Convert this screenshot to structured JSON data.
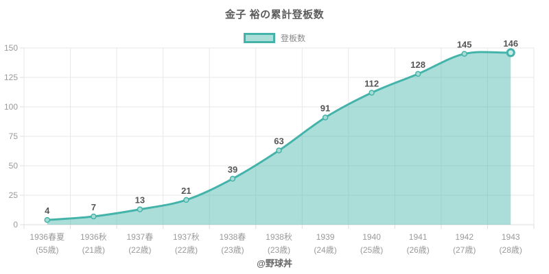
{
  "title": "金子 裕の累計登板数",
  "legend": {
    "label": "登板数"
  },
  "watermark": "@野球丼",
  "colors": {
    "line": "#44b3aa",
    "fill": "rgba(68,179,170,0.45)",
    "marker_fill": "#a7dcd6",
    "marker_stroke": "#44b3aa",
    "last_marker_fill": "#c9ece8",
    "grid": "#e7e7e7",
    "axis": "#dddddd",
    "tick_label": "#999999",
    "data_label": "#555555"
  },
  "chart_data": {
    "type": "area",
    "title": "金子 裕の累計登板数",
    "series": [
      {
        "name": "登板数",
        "values": [
          4,
          7,
          13,
          21,
          39,
          63,
          91,
          112,
          128,
          145,
          146
        ]
      }
    ],
    "categories": [
      "1936春夏",
      "1936秋",
      "1937春",
      "1937秋",
      "1938春",
      "1938秋",
      "1939",
      "1940",
      "1941",
      "1942",
      "1943"
    ],
    "category_sublabels": [
      "(55歳)",
      "(21歳)",
      "(22歳)",
      "(22歳)",
      "(23歳)",
      "(23歳)",
      "(24歳)",
      "(25歳)",
      "(26歳)",
      "(27歳)",
      "(28歳)"
    ],
    "ylim": [
      0,
      150
    ],
    "yticks": [
      0,
      25,
      50,
      75,
      100,
      125,
      150
    ],
    "grid": true,
    "legend_position": "top",
    "xlabel": "",
    "ylabel": ""
  }
}
